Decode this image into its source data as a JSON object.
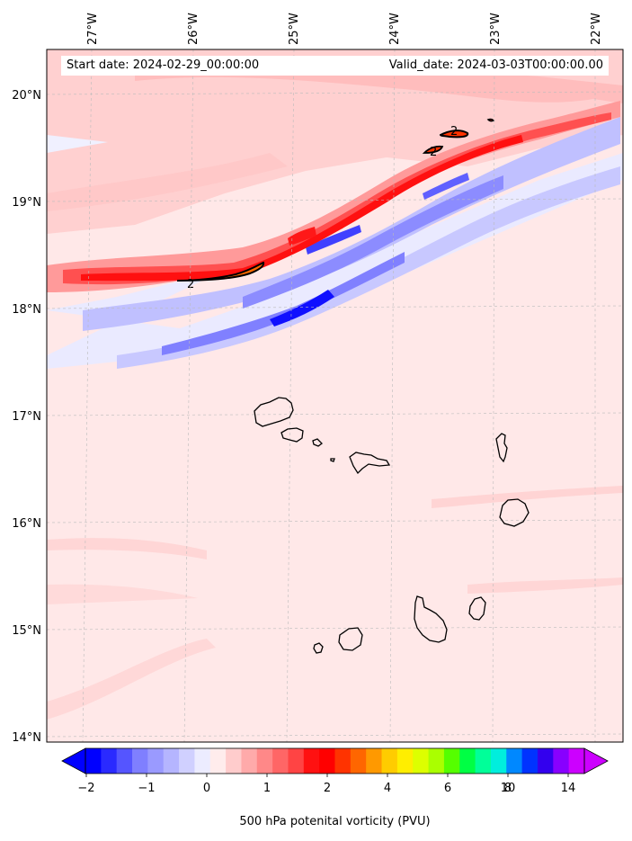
{
  "header": {
    "start_date": "Start date: 2024-02-29_00:00:00",
    "valid_date": "Valid_date: 2024-03-03T00:00:00.00"
  },
  "map": {
    "lon_labels": [
      "27°W",
      "26°W",
      "25°W",
      "24°W",
      "23°W",
      "22°W"
    ],
    "lat_labels": [
      "20°N",
      "19°N",
      "18°N",
      "17°N",
      "16°N",
      "15°N",
      "14°N"
    ],
    "contour_label": "2",
    "field": "500 hPa potential vorticity",
    "region": "Cape Verde islands",
    "lon_range": [
      -27.3,
      -21.75
    ],
    "lat_range": [
      13.95,
      20.4
    ],
    "colors": {
      "strong_negative": "#0000ff",
      "moderate_negative": "#8080ff",
      "weak_negative": "#eaeaff",
      "weak_positive": "#ffe8e8",
      "light_positive": "#ffcccc",
      "moderate_positive": "#ff8080",
      "strong_positive": "#ff1010",
      "contour_fill": "#ff6a00"
    }
  },
  "colorbar": {
    "tick_labels": [
      "−2",
      "−1",
      "0",
      "1",
      "2",
      "4",
      "6",
      "8",
      "10",
      "14"
    ],
    "label": "500 hPa potenital vorticity (PVU)",
    "colors": [
      "#0000ff",
      "#2a2aff",
      "#5555ff",
      "#7f7fff",
      "#9a9aff",
      "#b5b5ff",
      "#d0d0ff",
      "#ececff",
      "#ffecec",
      "#ffcccc",
      "#ffaaaa",
      "#ff8888",
      "#ff6666",
      "#ff4444",
      "#ff1111",
      "#ff0000",
      "#ff3300",
      "#ff6600",
      "#ff9900",
      "#ffcc00",
      "#ffee00",
      "#ddff00",
      "#aaff00",
      "#55ff00",
      "#00ff44",
      "#00ff99",
      "#00eedd",
      "#0088ff",
      "#0033ff",
      "#3300ee",
      "#8800ff",
      "#cc00ff"
    ]
  }
}
